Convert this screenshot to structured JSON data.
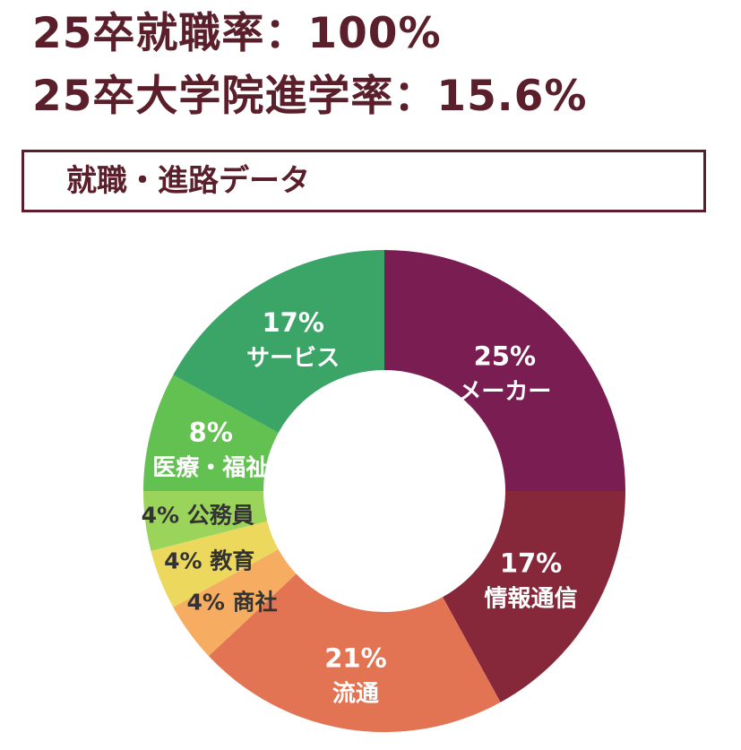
{
  "header": {
    "employment_rate": "25卒就職率：100%",
    "grad_school_rate": "25卒大学院進学率：15.6%"
  },
  "section": {
    "title": "就職・進路データ"
  },
  "chart_data": {
    "type": "pie",
    "variant": "donut",
    "title": "",
    "start": "12 o'clock",
    "direction": "clockwise",
    "slices": [
      {
        "label": "メーカー",
        "value_label": "25%",
        "value": 25,
        "color": "#7a1d52",
        "label_color": "#ffffff",
        "label_position": "inside"
      },
      {
        "label": "情報通信",
        "value_label": "17%",
        "value": 17,
        "color": "#86283a",
        "label_color": "#ffffff",
        "label_position": "inside"
      },
      {
        "label": "流通",
        "value_label": "21%",
        "value": 21,
        "color": "#e27453",
        "label_color": "#ffffff",
        "label_position": "inside"
      },
      {
        "label": "商社",
        "value_label": "4%",
        "value": 4,
        "color": "#f6ac61",
        "label_color": "#333333",
        "label_position": "inside"
      },
      {
        "label": "教育",
        "value_label": "4%",
        "value": 4,
        "color": "#ecd85c",
        "label_color": "#333333",
        "label_position": "inside"
      },
      {
        "label": "公務員",
        "value_label": "4%",
        "value": 4,
        "color": "#9bd45a",
        "label_color": "#333333",
        "label_position": "inside"
      },
      {
        "label": "医療・福祉",
        "value_label": "8%",
        "value": 8,
        "color": "#63c152",
        "label_color": "#ffffff",
        "label_position": "inside"
      },
      {
        "label": "サービス",
        "value_label": "17%",
        "value": 17,
        "color": "#3aa566",
        "label_color": "#ffffff",
        "label_position": "inside"
      }
    ]
  }
}
